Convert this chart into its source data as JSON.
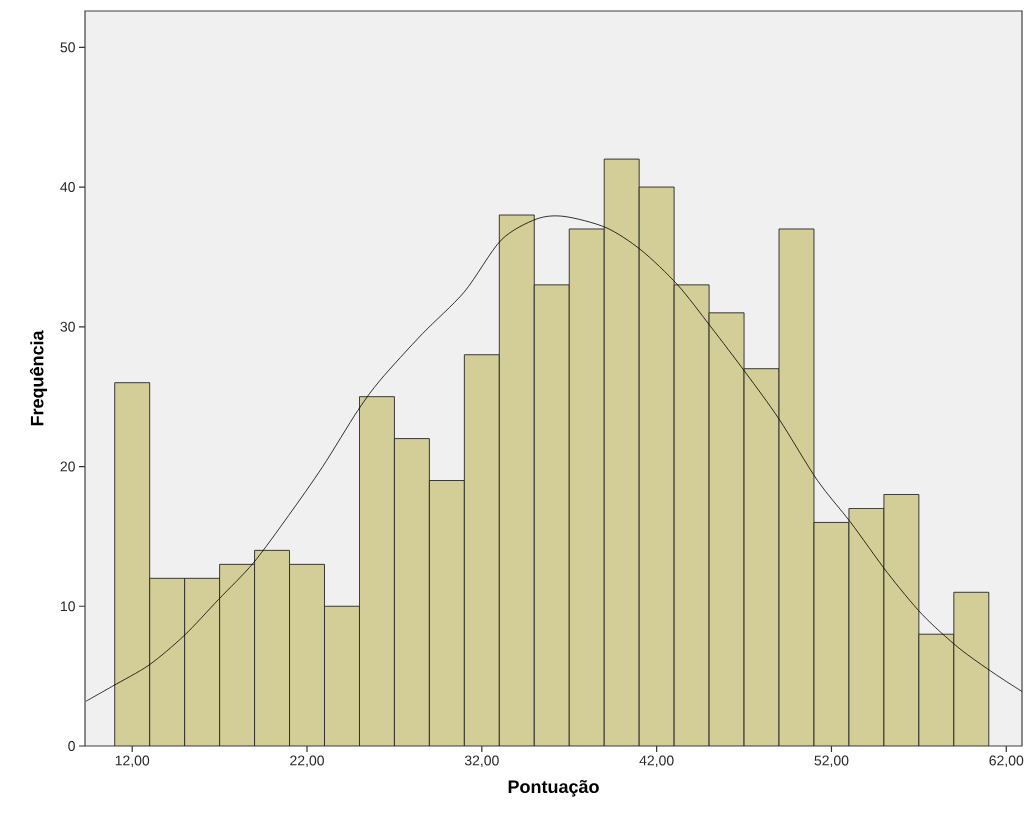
{
  "chart_data": {
    "type": "histogram",
    "xlabel": "Pontuação",
    "ylabel": "Frequência",
    "xlim": [
      9.3,
      62.9
    ],
    "ylim": [
      0,
      52.6
    ],
    "xticks": [
      {
        "value": 12,
        "label": "12,00"
      },
      {
        "value": 22,
        "label": "22,00"
      },
      {
        "value": 32,
        "label": "32,00"
      },
      {
        "value": 42,
        "label": "42,00"
      },
      {
        "value": 52,
        "label": "52,00"
      },
      {
        "value": 62,
        "label": "62,00"
      }
    ],
    "yticks": [
      0,
      10,
      20,
      30,
      40,
      50
    ],
    "grid": false,
    "marker": "none",
    "series": [
      {
        "color": "#d3ce98",
        "bins": [
          11,
          13,
          15,
          17,
          19,
          21,
          23,
          25,
          27,
          29,
          31,
          33,
          35,
          37,
          39,
          41,
          43,
          45,
          47,
          49,
          51,
          53,
          55,
          57,
          59,
          61
        ],
        "values": [
          26,
          12,
          12,
          13,
          14,
          13,
          10,
          25,
          22,
          19,
          28,
          38,
          33,
          37,
          42,
          40,
          33,
          31,
          27,
          37,
          16,
          17,
          18,
          8,
          11
        ]
      },
      {
        "type": "line",
        "color": "#000000",
        "line_style": "solid",
        "x": [
          9.35,
          10.9,
          12.97,
          14.97,
          16.95,
          18.93,
          20.95,
          22.9,
          24.9,
          26.2,
          28.6,
          31.0,
          33.1,
          35.1,
          36.7,
          39.1,
          41.1,
          43.2,
          45.1,
          47.1,
          49.0,
          51.2,
          53.1,
          55.2,
          57.2,
          59.3,
          61.3,
          62.9
        ],
        "values": [
          3.2,
          4.3,
          5.8,
          7.9,
          10.5,
          13.1,
          16.5,
          20.0,
          24.0,
          26.2,
          29.5,
          32.5,
          36.2,
          37.7,
          37.9,
          37.1,
          35.5,
          33.0,
          30.0,
          26.7,
          23.4,
          19.0,
          16.0,
          12.4,
          9.4,
          7.0,
          5.2,
          3.9
        ]
      }
    ]
  }
}
